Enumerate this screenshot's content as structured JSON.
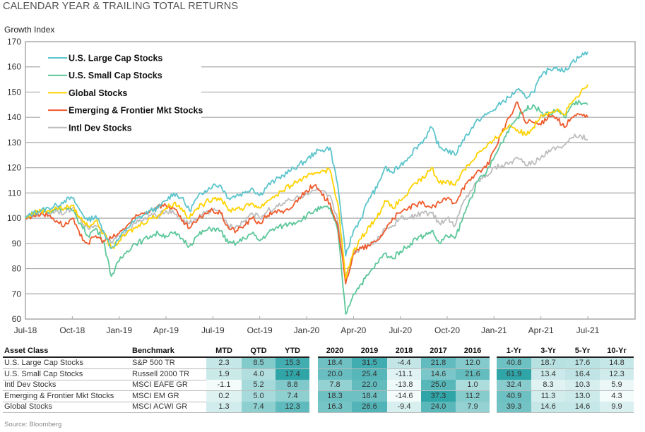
{
  "header": {
    "title": "CALENDAR YEAR & TRAILING TOTAL RETURNS"
  },
  "chart_data": {
    "type": "line",
    "ylabel": "Growth Index",
    "ylim": [
      60,
      170
    ],
    "yticks": [
      "60",
      "70",
      "80",
      "90",
      "100",
      "110",
      "120",
      "130",
      "140",
      "150",
      "160",
      "170"
    ],
    "xticks": [
      "Jul-18",
      "Oct-18",
      "Jan-19",
      "Apr-19",
      "Jul-19",
      "Oct-19",
      "Jan-20",
      "Apr-20",
      "Jul-20",
      "Oct-20",
      "Jan-21",
      "Apr-21",
      "Jul-21"
    ],
    "x_note": "semi-monthly points from Jul-18 to Jul-21",
    "grid": true,
    "legend_position": "top-left",
    "series": [
      {
        "name": "U.S. Large Cap Stocks",
        "color": "#5bc4cc",
        "values": [
          100,
          102,
          103,
          104,
          105,
          107,
          108,
          103,
          99,
          101,
          95,
          88,
          92,
          96,
          99,
          101,
          103,
          104,
          107,
          110,
          108,
          103,
          108,
          111,
          113,
          113,
          108,
          109,
          110,
          112,
          109,
          113,
          115,
          117,
          119,
          121,
          123,
          126,
          127,
          128,
          113,
          85,
          95,
          100,
          108,
          112,
          120,
          118,
          121,
          124,
          128,
          131,
          136,
          128,
          127,
          125,
          131,
          135,
          139,
          141,
          143,
          146,
          148,
          151,
          148,
          150,
          156,
          159,
          160,
          158,
          162,
          164,
          166
        ]
      },
      {
        "name": "U.S. Small Cap Stocks",
        "color": "#5cc79a",
        "values": [
          100,
          102,
          103,
          102,
          104,
          104,
          103,
          98,
          93,
          96,
          91,
          77,
          83,
          87,
          90,
          91,
          93,
          94,
          93,
          94,
          92,
          89,
          93,
          95,
          96,
          95,
          90,
          90,
          92,
          94,
          91,
          94,
          96,
          97,
          98,
          99,
          101,
          103,
          104,
          104,
          95,
          62,
          70,
          74,
          78,
          82,
          86,
          84,
          87,
          89,
          92,
          93,
          95,
          90,
          93,
          92,
          100,
          108,
          115,
          118,
          124,
          130,
          136,
          140,
          143,
          145,
          142,
          141,
          143,
          140,
          145,
          146,
          145
        ]
      },
      {
        "name": "Global Stocks",
        "color": "#ffd200",
        "values": [
          100,
          102,
          103,
          103,
          104,
          104,
          105,
          100,
          97,
          99,
          94,
          88,
          91,
          94,
          96,
          98,
          100,
          101,
          104,
          106,
          104,
          100,
          104,
          106,
          108,
          108,
          103,
          104,
          104,
          106,
          104,
          107,
          109,
          111,
          113,
          115,
          116,
          118,
          119,
          119,
          106,
          76,
          87,
          92,
          97,
          100,
          107,
          104,
          107,
          110,
          114,
          116,
          120,
          114,
          115,
          113,
          119,
          122,
          126,
          128,
          131,
          134,
          137,
          135,
          133,
          136,
          141,
          142,
          143,
          141,
          146,
          149,
          153
        ]
      },
      {
        "name": "Emerging & Frontier Mkt Stocks",
        "color": "#ef5a2c",
        "values": [
          100,
          101,
          102,
          101,
          99,
          97,
          100,
          93,
          90,
          93,
          91,
          92,
          94,
          97,
          100,
          102,
          103,
          105,
          105,
          104,
          99,
          96,
          99,
          102,
          103,
          102,
          96,
          95,
          97,
          100,
          98,
          101,
          103,
          102,
          104,
          108,
          111,
          113,
          109,
          106,
          97,
          74,
          86,
          88,
          89,
          91,
          95,
          100,
          102,
          104,
          105,
          106,
          104,
          106,
          108,
          106,
          112,
          115,
          119,
          120,
          127,
          134,
          140,
          146,
          138,
          138,
          137,
          141,
          140,
          136,
          140,
          141,
          140
        ]
      },
      {
        "name": "Intl Dev Stocks",
        "color": "#bdbdbd",
        "values": [
          100,
          101,
          102,
          102,
          103,
          102,
          104,
          100,
          96,
          97,
          94,
          90,
          93,
          95,
          98,
          99,
          101,
          101,
          103,
          102,
          99,
          98,
          100,
          102,
          103,
          102,
          97,
          97,
          99,
          102,
          100,
          103,
          104,
          106,
          107,
          108,
          110,
          111,
          111,
          109,
          99,
          76,
          86,
          88,
          89,
          91,
          96,
          97,
          100,
          100,
          101,
          102,
          102,
          98,
          100,
          97,
          106,
          111,
          115,
          117,
          120,
          121,
          122,
          124,
          121,
          122,
          124,
          127,
          128,
          129,
          132,
          133,
          131
        ]
      }
    ]
  },
  "table": {
    "headers": {
      "asset": "Asset Class",
      "benchmark": "Benchmark",
      "cols": [
        "MTD",
        "QTD",
        "YTD",
        "2020",
        "2019",
        "2018",
        "2017",
        "2016",
        "1-Yr",
        "3-Yr",
        "5-Yr",
        "10-Yr"
      ]
    },
    "heat_color_low": "#f4fbfb",
    "heat_color_high": "#2fa5a8",
    "rows": [
      {
        "asset": "U.S. Large Cap Stocks",
        "benchmark": "S&P 500 TR",
        "values": [
          "2.3",
          "8.5",
          "15.3",
          "18.4",
          "31.5",
          "-4.4",
          "21.8",
          "12.0",
          "40.8",
          "18.7",
          "17.6",
          "14.8"
        ]
      },
      {
        "asset": "U.S. Small Cap Stocks",
        "benchmark": "Russell 2000 TR",
        "values": [
          "1.9",
          "4.0",
          "17.4",
          "20.0",
          "25.4",
          "-11.1",
          "14.6",
          "21.6",
          "61.9",
          "13.4",
          "16.4",
          "12.3"
        ]
      },
      {
        "asset": "Intl Dev Stocks",
        "benchmark": "MSCI EAFE GR",
        "values": [
          "-1.1",
          "5.2",
          "8.8",
          "7.8",
          "22.0",
          "-13.8",
          "25.0",
          "1.0",
          "32.4",
          "8.3",
          "10.3",
          "5.9"
        ]
      },
      {
        "asset": "Emerging & Frontier Mkt Stocks",
        "benchmark": "MSCI EM GR",
        "values": [
          "0.2",
          "5.0",
          "7.4",
          "18.3",
          "18.4",
          "-14.6",
          "37.3",
          "11.2",
          "40.9",
          "11.3",
          "13.0",
          "4.3"
        ]
      },
      {
        "asset": "Global Stocks",
        "benchmark": "MSCI ACWI GR",
        "values": [
          "1.3",
          "7.4",
          "12.3",
          "16.3",
          "26.6",
          "-9.4",
          "24.0",
          "7.9",
          "39.3",
          "14.6",
          "14.6",
          "9.9"
        ]
      }
    ]
  },
  "footer": {
    "source": "Source: Bloomberg"
  }
}
